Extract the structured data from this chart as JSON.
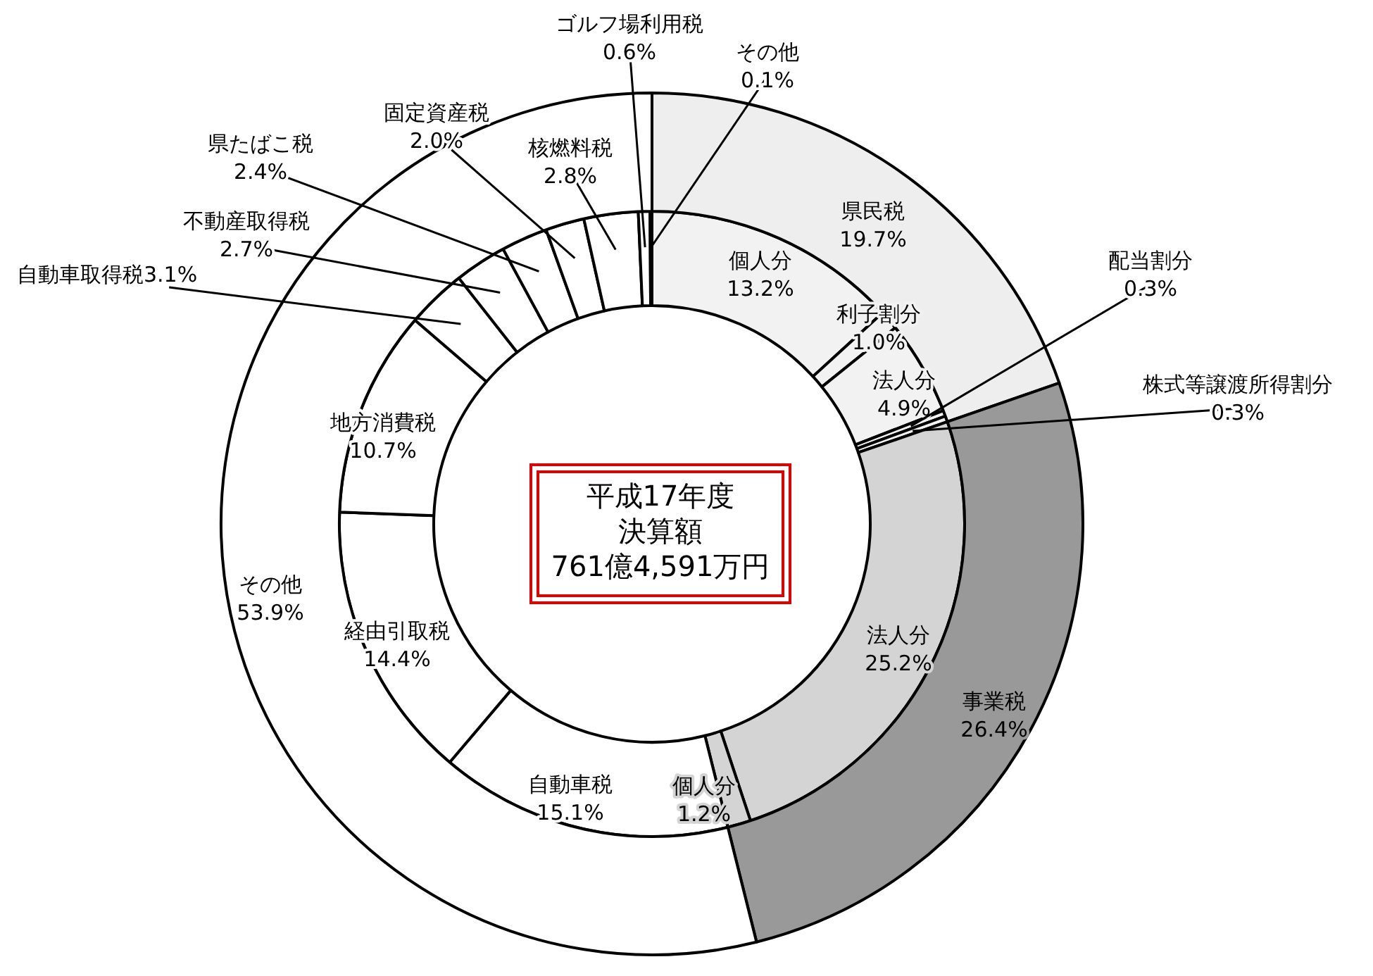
{
  "chart_data": [
    {
      "type": "donut",
      "title": "平成17年度",
      "subtitle": "決算額",
      "annotations": [
        "761億4,591万円"
      ],
      "categories": [
        "個人分",
        "利子割分",
        "法人分",
        "配当割分",
        "株式等譲渡所得割分",
        "法人分",
        "個人分",
        "自動車税",
        "経由引取税",
        "地方消費税",
        "自動車取得税",
        "不動産取得税",
        "県たばこ税",
        "固定資産税",
        "核燃料税",
        "ゴルフ場利用税",
        "その他"
      ],
      "values": [
        13.2,
        1.0,
        4.9,
        0.3,
        0.3,
        25.2,
        1.2,
        15.1,
        14.4,
        10.7,
        3.1,
        2.7,
        2.4,
        2.0,
        2.8,
        0.6,
        0.1
      ],
      "value_labels": [
        "13.2%",
        "1.0%",
        "4.9%",
        "0.3%",
        "0.3%",
        "25.2%",
        "1.2%",
        "15.1%",
        "14.4%",
        "10.7%",
        "3.1%",
        "2.7%",
        "2.4%",
        "2.0%",
        "2.8%",
        "0.6%",
        "0.1%"
      ],
      "colors": [
        "#f2f2f2",
        "#f2f2f2",
        "#f2f2f2",
        "#f2f2f2",
        "#f2f2f2",
        "#d4d4d4",
        "#d4d4d4",
        "#ffffff",
        "#ffffff",
        "#ffffff",
        "#ffffff",
        "#ffffff",
        "#ffffff",
        "#ffffff",
        "#ffffff",
        "#ffffff",
        "#ffffff"
      ]
    },
    {
      "type": "donut",
      "categories": [
        "県民税",
        "事業税",
        "その他"
      ],
      "values": [
        19.7,
        26.4,
        53.9
      ],
      "value_labels": [
        "19.7%",
        "26.4%",
        "53.9%"
      ],
      "colors": [
        "#eeeeee",
        "#999999",
        "#ffffff"
      ]
    }
  ]
}
